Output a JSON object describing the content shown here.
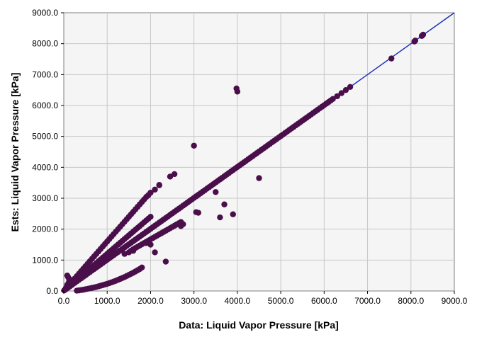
{
  "chart_data": {
    "type": "scatter",
    "title": "",
    "xlabel": "Data: Liquid Vapor Pressure [kPa]",
    "ylabel": "Ests: Liquid Vapor Pressure [kPa]",
    "xlim": [
      0,
      9000
    ],
    "ylim": [
      0,
      9000
    ],
    "x_ticks": [
      "0.0",
      "1000.0",
      "2000.0",
      "3000.0",
      "4000.0",
      "5000.0",
      "6000.0",
      "7000.0",
      "8000.0",
      "9000.0"
    ],
    "y_ticks": [
      "0.0",
      "1000.0",
      "2000.0",
      "3000.0",
      "4000.0",
      "5000.0",
      "6000.0",
      "7000.0",
      "8000.0",
      "9000.0"
    ],
    "grid": true,
    "legend": "none",
    "colors": {
      "points": "#4a0f4a",
      "reference_line": "#1f2fbf",
      "plot_background": "#f5f5f5",
      "grid": "#c8c8c8"
    },
    "reference_line": {
      "x": [
        0,
        9000
      ],
      "y": [
        0,
        9000
      ]
    },
    "series": [
      {
        "x": [
          10,
          30,
          50,
          80,
          100,
          130,
          150,
          180,
          200,
          250,
          300,
          350,
          400,
          450,
          500,
          550,
          600,
          650,
          700,
          750,
          800,
          850,
          900,
          950,
          1000,
          1050,
          1100,
          1150,
          1200,
          1250,
          1300,
          1350,
          1400,
          1450,
          1500,
          1550,
          1600,
          1650,
          1700,
          1750,
          1800,
          1850,
          1900,
          1950,
          2000,
          2050,
          2100,
          2150,
          2200,
          2250,
          2300,
          2350,
          2400,
          2450,
          2500,
          2550,
          2600,
          2650,
          2700,
          2750,
          2800,
          2850,
          2900,
          2950,
          3000,
          3050,
          3100,
          3150,
          3200,
          3250,
          3300,
          3350,
          3400,
          3450,
          3500,
          3550,
          3600,
          3650,
          3700,
          3750,
          3800,
          3850,
          3900,
          3950,
          4000,
          4050,
          4100,
          4150,
          4200,
          4250,
          4300,
          4350,
          4400,
          4450,
          4500,
          4550,
          4600,
          4650,
          4700,
          4750,
          4800,
          4850,
          4900,
          4950,
          5000,
          5050,
          5100,
          5150,
          5200,
          5250,
          5300,
          5350,
          5400,
          5450,
          5500,
          5550,
          5600,
          5650,
          5700,
          5750,
          5800,
          5850,
          5900,
          5950,
          6000,
          6050,
          6100,
          6150,
          6200,
          6300,
          6400,
          6500,
          6600,
          7550,
          8080,
          8100,
          8250,
          8280
        ],
        "y": [
          20,
          40,
          60,
          90,
          110,
          140,
          160,
          190,
          210,
          260,
          310,
          360,
          410,
          460,
          510,
          560,
          610,
          660,
          710,
          760,
          810,
          860,
          910,
          960,
          1010,
          1060,
          1110,
          1160,
          1210,
          1260,
          1310,
          1360,
          1410,
          1460,
          1510,
          1560,
          1610,
          1660,
          1710,
          1760,
          1810,
          1860,
          1910,
          1960,
          2010,
          2060,
          2110,
          2160,
          2210,
          2260,
          2310,
          2360,
          2410,
          2460,
          2510,
          2560,
          2610,
          2660,
          2710,
          2760,
          2810,
          2860,
          2910,
          2960,
          3010,
          3060,
          3110,
          3160,
          3210,
          3260,
          3310,
          3360,
          3410,
          3460,
          3510,
          3560,
          3610,
          3660,
          3710,
          3760,
          3810,
          3860,
          3910,
          3960,
          4010,
          4060,
          4110,
          4160,
          4210,
          4260,
          4310,
          4360,
          4410,
          4460,
          4510,
          4560,
          4610,
          4660,
          4710,
          4760,
          4810,
          4860,
          4910,
          4960,
          5010,
          5060,
          5110,
          5160,
          5210,
          5260,
          5310,
          5360,
          5410,
          5460,
          5510,
          5560,
          5610,
          5660,
          5710,
          5760,
          5810,
          5860,
          5910,
          5960,
          6010,
          6060,
          6110,
          6160,
          6210,
          6300,
          6400,
          6500,
          6600,
          7520,
          8070,
          8100,
          8250,
          8290
        ]
      },
      {
        "x": [
          100,
          150,
          200,
          250,
          300,
          350,
          400,
          450,
          500,
          550,
          600,
          650,
          700,
          750,
          800,
          850,
          900,
          950,
          1000,
          1050,
          1100,
          1150,
          1200,
          1250,
          1300,
          1350,
          1400,
          1450,
          1500,
          1550,
          1600,
          1650,
          1700,
          1750,
          1800,
          1850,
          1900,
          1950,
          2000,
          2100,
          2200,
          2450,
          2550
        ],
        "y": [
          150,
          230,
          320,
          400,
          480,
          560,
          640,
          720,
          800,
          880,
          960,
          1040,
          1120,
          1200,
          1280,
          1360,
          1440,
          1520,
          1600,
          1680,
          1760,
          1840,
          1920,
          2000,
          2080,
          2160,
          2240,
          2320,
          2400,
          2480,
          2560,
          2640,
          2720,
          2800,
          2880,
          2960,
          3040,
          3100,
          3180,
          3280,
          3420,
          3700,
          3780
        ]
      },
      {
        "x": [
          300,
          350,
          400,
          450,
          500,
          550,
          600,
          650,
          700,
          750,
          800,
          850,
          900,
          950,
          1000,
          1050,
          1100,
          1150,
          1200,
          1250,
          1300,
          1350,
          1400,
          1450,
          1500,
          1550,
          1600,
          1650,
          1700,
          1750,
          1800
        ],
        "y": [
          10,
          20,
          30,
          40,
          55,
          70,
          85,
          100,
          115,
          130,
          150,
          170,
          190,
          210,
          230,
          255,
          280,
          305,
          330,
          360,
          390,
          420,
          450,
          485,
          520,
          555,
          590,
          630,
          670,
          710,
          760
        ]
      },
      {
        "x": [
          1500,
          1550,
          1600,
          1650,
          1700,
          1750,
          1800,
          1850,
          1900,
          1950,
          2000,
          2050,
          2100,
          2150,
          2200,
          2250,
          2300,
          2350,
          2400,
          2450,
          2500,
          2550,
          2600,
          2650,
          2700
        ],
        "y": [
          1250,
          1300,
          1350,
          1390,
          1430,
          1470,
          1510,
          1550,
          1590,
          1630,
          1670,
          1710,
          1750,
          1790,
          1830,
          1870,
          1910,
          1950,
          1990,
          2030,
          2070,
          2110,
          2150,
          2190,
          2230
        ]
      },
      {
        "x": [
          50,
          80,
          120,
          160,
          200,
          250,
          300,
          350,
          400,
          450,
          500,
          550,
          600,
          650,
          700,
          750,
          800,
          850,
          900,
          950,
          1000,
          1050,
          1100,
          1150,
          1200,
          1250,
          1300,
          1350,
          1400,
          1450,
          1500,
          1550,
          1600,
          1650,
          1700,
          1750,
          1800,
          1850,
          1900,
          1950,
          2000
        ],
        "y": [
          100,
          200,
          300,
          350,
          250,
          320,
          380,
          430,
          480,
          540,
          600,
          660,
          720,
          780,
          840,
          900,
          960,
          1020,
          1080,
          1140,
          1200,
          1260,
          1320,
          1380,
          1440,
          1500,
          1560,
          1620,
          1680,
          1740,
          1800,
          1860,
          1920,
          1980,
          2040,
          2100,
          2160,
          2220,
          2280,
          2340,
          2400
        ]
      },
      {
        "x": [
          80,
          100,
          120,
          150,
          2200,
          2350,
          2600,
          2700,
          2750,
          3000,
          3050,
          3100,
          3600,
          3900,
          3980,
          4000,
          4500,
          1900,
          2000,
          2100,
          1400,
          1600,
          3500,
          3700
        ],
        "y": [
          500,
          450,
          400,
          350,
          3430,
          950,
          2150,
          2100,
          2160,
          4700,
          2550,
          2530,
          2380,
          2480,
          6550,
          6450,
          3650,
          1550,
          1500,
          1250,
          1200,
          1300,
          3200,
          2800
        ]
      }
    ]
  }
}
